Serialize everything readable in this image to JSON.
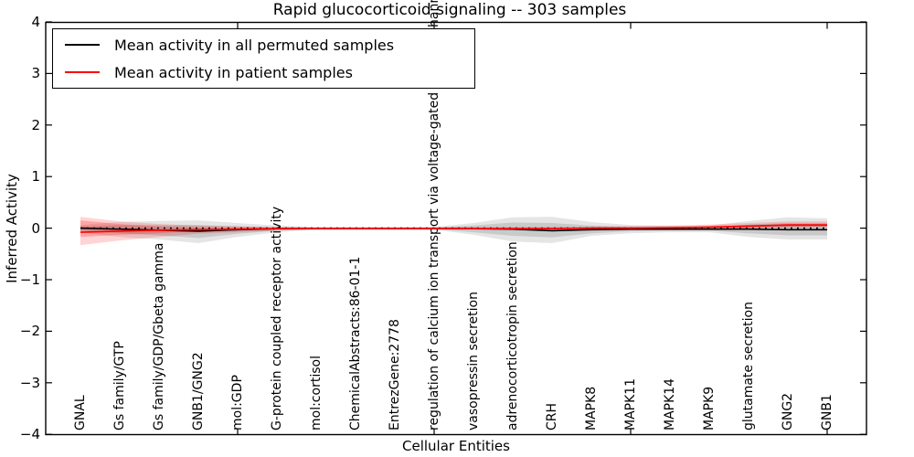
{
  "chart_data": {
    "type": "line",
    "title": "Rapid glucocorticoid signaling -- 303 samples",
    "xlabel": "Cellular Entities",
    "ylabel": "Inferred Activity",
    "ylim": [
      -4,
      4
    ],
    "ytick_labels": [
      "4",
      "3",
      "2",
      "1",
      "0",
      "−1",
      "−2",
      "−3",
      "−4"
    ],
    "ytick_values": [
      4,
      3,
      2,
      1,
      0,
      -1,
      -2,
      -3,
      -4
    ],
    "xtick_mark_indices": [
      4,
      9,
      14,
      19
    ],
    "grid": false,
    "legend_position": "upper left",
    "categories": [
      "GNAL",
      "Gs family/GTP",
      "Gs family/GDP/Gbeta gamma",
      "GNB1/GNG2",
      "mol:GDP",
      "G-protein coupled receptor activity",
      "mol:cortisol",
      "ChemicalAbstracts:86-01-1",
      "EntrezGene:2778",
      "regulation of calcium ion transport via voltage-gated calcium channel",
      "vasopressin secretion",
      "adrenocorticotropin secretion",
      "CRH",
      "MAPK8",
      "MAPK11",
      "MAPK14",
      "MAPK9",
      "glutamate secretion",
      "GNG2",
      "GNB1"
    ],
    "zero_line": {
      "value": 0,
      "style": "dotted",
      "color": "#000000"
    },
    "series": [
      {
        "name": "Mean activity in all permuted samples",
        "color": "#000000",
        "band_fill": "rgba(0,0,0,0.10)",
        "band_inner_fill": "rgba(0,0,0,0.12)",
        "values": [
          0.0,
          -0.02,
          -0.04,
          -0.06,
          -0.03,
          -0.01,
          -0.01,
          -0.01,
          -0.01,
          -0.01,
          -0.01,
          -0.02,
          -0.05,
          -0.03,
          -0.02,
          -0.02,
          -0.02,
          -0.02,
          -0.03,
          -0.03
        ],
        "band_upper": [
          0.06,
          0.12,
          0.14,
          0.15,
          0.1,
          0.05,
          0.02,
          0.02,
          0.02,
          0.02,
          0.1,
          0.21,
          0.22,
          0.12,
          0.06,
          0.05,
          0.05,
          0.14,
          0.21,
          0.19
        ],
        "band_lower": [
          -0.08,
          -0.17,
          -0.22,
          -0.29,
          -0.17,
          -0.08,
          -0.03,
          -0.03,
          -0.03,
          -0.03,
          -0.13,
          -0.26,
          -0.29,
          -0.15,
          -0.1,
          -0.08,
          -0.08,
          -0.17,
          -0.22,
          -0.22
        ],
        "band_inner_upper": [
          0.03,
          0.06,
          0.06,
          0.06,
          0.04,
          0.02,
          0.01,
          0.01,
          0.01,
          0.01,
          0.05,
          0.11,
          0.1,
          0.05,
          0.02,
          0.02,
          0.02,
          0.07,
          0.1,
          0.09
        ],
        "band_inner_lower": [
          -0.04,
          -0.1,
          -0.14,
          -0.19,
          -0.11,
          -0.05,
          -0.02,
          -0.02,
          -0.02,
          -0.02,
          -0.08,
          -0.15,
          -0.18,
          -0.1,
          -0.06,
          -0.05,
          -0.05,
          -0.1,
          -0.14,
          -0.14
        ]
      },
      {
        "name": "Mean activity in patient samples",
        "color": "#ff0000",
        "band_fill": "rgba(255,0,0,0.17)",
        "band_inner_fill": "rgba(255,0,0,0.22)",
        "values": [
          -0.08,
          -0.06,
          -0.04,
          -0.03,
          -0.02,
          -0.01,
          -0.01,
          -0.01,
          -0.01,
          -0.01,
          -0.01,
          -0.01,
          -0.01,
          0.0,
          0.0,
          0.01,
          0.02,
          0.04,
          0.06,
          0.06
        ],
        "band_upper": [
          0.22,
          0.13,
          0.08,
          0.05,
          0.03,
          0.02,
          0.02,
          0.02,
          0.02,
          0.02,
          0.02,
          0.02,
          0.02,
          0.03,
          0.04,
          0.05,
          0.07,
          0.1,
          0.13,
          0.13
        ],
        "band_lower": [
          -0.33,
          -0.24,
          -0.17,
          -0.11,
          -0.08,
          -0.05,
          -0.03,
          -0.03,
          -0.03,
          -0.03,
          -0.03,
          -0.03,
          -0.03,
          -0.03,
          -0.03,
          -0.02,
          -0.01,
          0.0,
          0.01,
          0.01
        ],
        "band_inner_upper": [
          0.15,
          0.08,
          0.03,
          0.01,
          0.01,
          0.01,
          0.01,
          0.01,
          0.01,
          0.01,
          0.01,
          0.01,
          0.01,
          0.01,
          0.02,
          0.02,
          0.03,
          0.05,
          0.08,
          0.09
        ],
        "band_inner_lower": [
          -0.17,
          -0.13,
          -0.1,
          -0.06,
          -0.04,
          -0.03,
          -0.02,
          -0.02,
          -0.02,
          -0.02,
          -0.02,
          -0.02,
          -0.02,
          -0.02,
          -0.02,
          -0.02,
          -0.01,
          0.0,
          0.02,
          0.03
        ]
      }
    ]
  }
}
